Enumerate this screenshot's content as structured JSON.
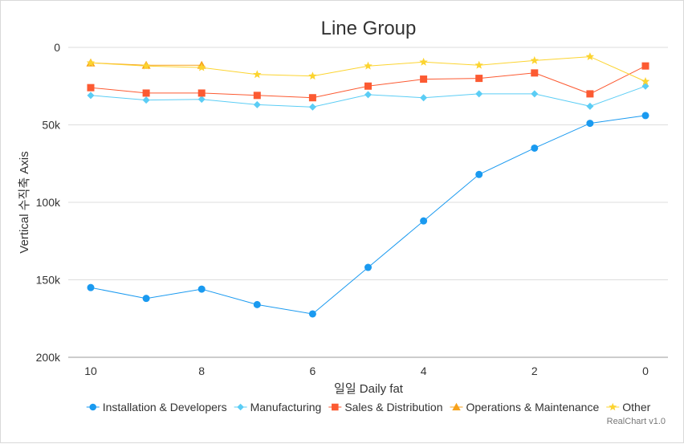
{
  "chart_data": {
    "type": "line",
    "title": "Line Group",
    "xlabel": "일일 Daily fat",
    "ylabel": "Vertical 수직축 Axis",
    "x": [
      10,
      9,
      8,
      7,
      6,
      5,
      4,
      3,
      2,
      1,
      0
    ],
    "x_ticks": [
      "10",
      "8",
      "6",
      "4",
      "2",
      "0"
    ],
    "x_reversed": true,
    "y_ticks": [
      "0",
      "50k",
      "100k",
      "150k",
      "200k"
    ],
    "ylim": [
      0,
      200000
    ],
    "y_reversed": true,
    "grid": true,
    "legend_position": "bottom",
    "series": [
      {
        "name": "Installation & Developers",
        "color": "#1a9af0",
        "marker": "circle",
        "values": [
          155000,
          162000,
          156000,
          166000,
          172000,
          142000,
          112000,
          82000,
          65000,
          49000,
          44000
        ]
      },
      {
        "name": "Manufacturing",
        "color": "#5bcdf5",
        "marker": "diamond",
        "values": [
          31000,
          34000,
          33500,
          37000,
          38500,
          30500,
          32500,
          30000,
          30000,
          38000,
          25000
        ]
      },
      {
        "name": "Sales & Distribution",
        "color": "#fc5a32",
        "marker": "square",
        "values": [
          26000,
          29500,
          29500,
          31000,
          32500,
          25000,
          20500,
          20000,
          16500,
          30000,
          12000
        ]
      },
      {
        "name": "Operations & Maintenance",
        "color": "#f7a21b",
        "marker": "triangle",
        "values": [
          10000,
          11500,
          11500,
          null,
          null,
          null,
          null,
          null,
          null,
          null,
          null
        ]
      },
      {
        "name": "Other",
        "color": "#fcd430",
        "marker": "star",
        "values": [
          10000,
          12000,
          13000,
          17500,
          18500,
          12000,
          9500,
          11500,
          8500,
          6000,
          22000
        ]
      }
    ]
  },
  "credit": "RealChart v1.0"
}
